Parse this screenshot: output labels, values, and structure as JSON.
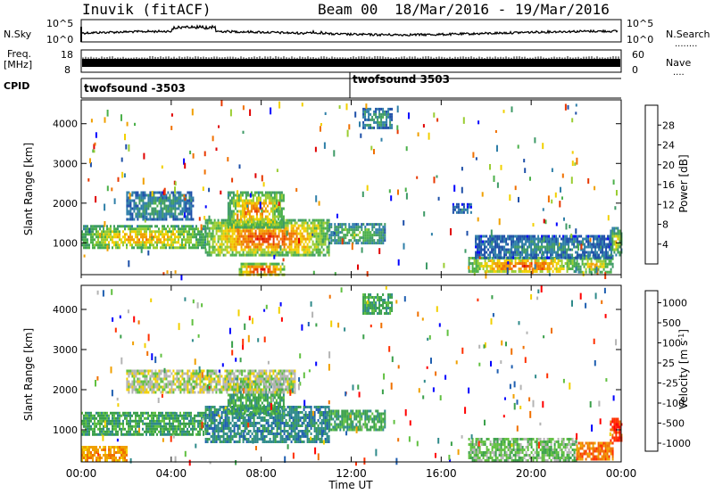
{
  "header": {
    "station": "Inuvik (fitACF)",
    "beam": "Beam 00",
    "date_range": "18/Mar/2016 - 19/Mar/2016"
  },
  "noise_panel": {
    "left_label": "N.Sky",
    "right_label": "N.Search",
    "ticks": [
      "10^5",
      "10^0"
    ]
  },
  "freq_panel": {
    "left_label_1": "Freq.",
    "left_label_2": "[MHz]",
    "right_label": "Nave",
    "left_ticks": [
      "18",
      "8"
    ],
    "right_ticks": [
      "60",
      "0"
    ]
  },
  "cpid_panel": {
    "label": "CPID",
    "programs": [
      {
        "name": "twofsound -3503",
        "start_hour": 0
      },
      {
        "name": "twofsound 3503",
        "start_hour": 12
      }
    ]
  },
  "colors": {
    "power_scale": [
      "#0000ff",
      "#1d4fa8",
      "#2f7fa8",
      "#3e9a66",
      "#4bb04a",
      "#9acd32",
      "#f2d000",
      "#f0a000",
      "#f07000",
      "#e83800",
      "#e00000"
    ],
    "velocity_scale": [
      "#0000ff",
      "#1f5fb0",
      "#2f8a8a",
      "#3aa04a",
      "#60c040",
      "#b4b4b4",
      "#f2d000",
      "#f0a000",
      "#f07000",
      "#ff3000",
      "#ff0000"
    ]
  },
  "chart_data": [
    {
      "type": "heatmap",
      "name": "power",
      "xlabel": "",
      "ylabel": "Slant Range [km]",
      "xlim_hours": [
        0,
        24
      ],
      "ylim": [
        200,
        4600
      ],
      "y_ticks": [
        1000,
        2000,
        3000,
        4000
      ],
      "y_tick_labels": [
        "1000",
        "2000",
        "3000",
        "4000"
      ],
      "colorbar": {
        "label": "Power [dB]",
        "range": [
          0,
          32
        ],
        "ticks": [
          4,
          8,
          12,
          16,
          20,
          24,
          28
        ],
        "tick_labels": [
          "4",
          "8",
          "12",
          "16",
          "20",
          "24",
          "28"
        ]
      },
      "echo_regions": [
        {
          "x": [
            0,
            5.5
          ],
          "y": [
            850,
            1450
          ],
          "level": 22
        },
        {
          "x": [
            5.5,
            11
          ],
          "y": [
            700,
            1600
          ],
          "level": 27
        },
        {
          "x": [
            6.5,
            9
          ],
          "y": [
            1400,
            2300
          ],
          "level": 24
        },
        {
          "x": [
            2,
            5
          ],
          "y": [
            1600,
            2300
          ],
          "level": 10
        },
        {
          "x": [
            11,
            13.5
          ],
          "y": [
            1000,
            1500
          ],
          "level": 14
        },
        {
          "x": [
            7,
            9
          ],
          "y": [
            200,
            500
          ],
          "level": 30
        },
        {
          "x": [
            17.2,
            22
          ],
          "y": [
            250,
            650
          ],
          "level": 27
        },
        {
          "x": [
            22,
            23.6
          ],
          "y": [
            250,
            700
          ],
          "level": 20
        },
        {
          "x": [
            17.5,
            23.6
          ],
          "y": [
            650,
            1200
          ],
          "level": 8
        },
        {
          "x": [
            16.5,
            17.3
          ],
          "y": [
            1750,
            2000
          ],
          "level": 6
        },
        {
          "x": [
            12.5,
            13.8
          ],
          "y": [
            3900,
            4400
          ],
          "level": 10
        },
        {
          "x": [
            23.5,
            24
          ],
          "y": [
            700,
            1400
          ],
          "level": 18
        }
      ]
    },
    {
      "type": "heatmap",
      "name": "velocity",
      "xlabel": "Time UT",
      "ylabel": "Slant Range [km]",
      "xlim_hours": [
        0,
        24
      ],
      "x_ticks": [
        0,
        4,
        8,
        12,
        16,
        20,
        24
      ],
      "x_tick_labels": [
        "00:00",
        "04:00",
        "08:00",
        "12:00",
        "16:00",
        "20:00",
        "00:00"
      ],
      "ylim": [
        200,
        4600
      ],
      "y_ticks": [
        1000,
        2000,
        3000,
        4000
      ],
      "y_tick_labels": [
        "1000",
        "2000",
        "3000",
        "4000"
      ],
      "colorbar": {
        "label": "Velocity [m s^-1]",
        "ticks": [
          1000,
          500,
          100,
          25,
          -25,
          -100,
          -500,
          -1000
        ],
        "tick_labels": [
          "1000",
          "500",
          "100",
          "25",
          "-25",
          "-100",
          "-500",
          "-1000"
        ]
      },
      "echo_regions": [
        {
          "x": [
            0,
            5.5
          ],
          "y": [
            850,
            1450
          ],
          "level": 3
        },
        {
          "x": [
            5.5,
            11
          ],
          "y": [
            700,
            1600
          ],
          "level": 2
        },
        {
          "x": [
            6.5,
            9
          ],
          "y": [
            1400,
            2300
          ],
          "level": 3
        },
        {
          "x": [
            2,
            9.5
          ],
          "y": [
            1900,
            2500
          ],
          "level": 5
        },
        {
          "x": [
            11,
            13.5
          ],
          "y": [
            1000,
            1500
          ],
          "level": 3
        },
        {
          "x": [
            0,
            2
          ],
          "y": [
            250,
            600
          ],
          "level": 7
        },
        {
          "x": [
            17.2,
            22
          ],
          "y": [
            250,
            800
          ],
          "level": 4
        },
        {
          "x": [
            22,
            23.6
          ],
          "y": [
            250,
            700
          ],
          "level": 8
        },
        {
          "x": [
            23.5,
            24
          ],
          "y": [
            700,
            1300
          ],
          "level": 9
        },
        {
          "x": [
            12.5,
            13.8
          ],
          "y": [
            3900,
            4400
          ],
          "level": 3
        }
      ]
    }
  ]
}
